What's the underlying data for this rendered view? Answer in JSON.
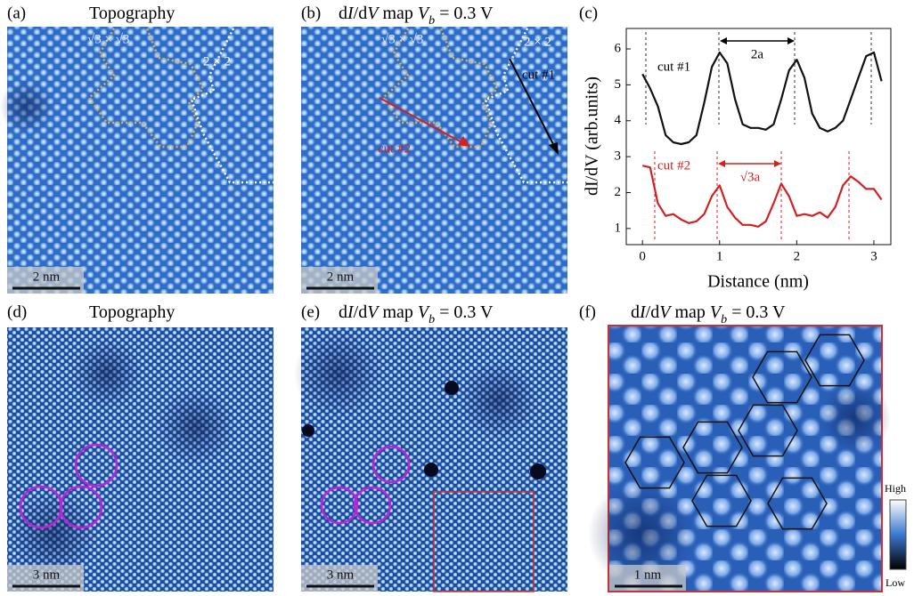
{
  "panels": [
    {
      "label": "(a)",
      "title": [
        "Topography"
      ],
      "scale_bar": "2 nm",
      "annotations": [
        "√3 × √3",
        "2 × 2"
      ]
    },
    {
      "label": "(b)",
      "title": [
        "d",
        "I",
        "/d",
        "V",
        " map  ",
        "V",
        "b",
        " = 0.3 V"
      ],
      "scale_bar": "2 nm",
      "annotations": [
        "√3 × √3",
        "2 × 2",
        "cut #1",
        "cut #2"
      ]
    },
    {
      "label": "(c)"
    },
    {
      "label": "(d)",
      "title": [
        "Topography"
      ],
      "scale_bar": "3 nm"
    },
    {
      "label": "(e)",
      "title": [
        "d",
        "I",
        "/d",
        "V",
        " map  ",
        "V",
        "b",
        " = 0.3 V"
      ],
      "scale_bar": "3 nm"
    },
    {
      "label": "(f)",
      "title": [
        "d",
        "I",
        "/d",
        "V",
        " map  ",
        "V",
        "b",
        " = 0.3 V"
      ],
      "scale_bar": "1 nm",
      "colorbar": [
        "High",
        "Low"
      ]
    }
  ],
  "chart_data": {
    "type": "line",
    "xlabel": "Distance (nm)",
    "ylabel": "dI/dV (arb.units)",
    "x": [
      0,
      0.1,
      0.2,
      0.3,
      0.4,
      0.5,
      0.6,
      0.7,
      0.8,
      0.9,
      1.0,
      1.1,
      1.2,
      1.3,
      1.4,
      1.5,
      1.6,
      1.7,
      1.8,
      1.9,
      2.0,
      2.1,
      2.2,
      2.3,
      2.4,
      2.5,
      2.6,
      2.7,
      2.8,
      2.9,
      3.0,
      3.1
    ],
    "series": [
      {
        "name": "cut #1",
        "color": "#111111",
        "values": [
          5.3,
          4.9,
          4.4,
          3.6,
          3.4,
          3.35,
          3.4,
          3.6,
          4.5,
          5.5,
          5.9,
          5.6,
          4.6,
          3.9,
          3.8,
          3.8,
          3.75,
          3.9,
          4.6,
          5.4,
          5.7,
          5.2,
          4.2,
          3.8,
          3.7,
          3.8,
          4.0,
          4.6,
          5.2,
          5.8,
          5.9,
          5.1
        ]
      },
      {
        "name": "cut #2",
        "color": "#d42020",
        "values": [
          2.75,
          2.7,
          1.7,
          1.35,
          1.4,
          1.25,
          1.15,
          1.2,
          1.4,
          1.9,
          2.2,
          1.6,
          1.3,
          1.1,
          1.1,
          1.05,
          1.2,
          1.7,
          2.25,
          1.9,
          1.35,
          1.4,
          1.35,
          1.45,
          1.3,
          1.6,
          2.2,
          2.45,
          2.3,
          2.1,
          2.1,
          1.8
        ]
      }
    ],
    "annotations": [
      "2a",
      "√3a"
    ],
    "xlim": [
      -0.21,
      3.22
    ],
    "ylim": [
      0.55,
      6.57
    ],
    "xticks": [
      0,
      1,
      2,
      3
    ],
    "yticks": [
      1,
      2,
      3,
      4,
      5,
      6
    ]
  }
}
